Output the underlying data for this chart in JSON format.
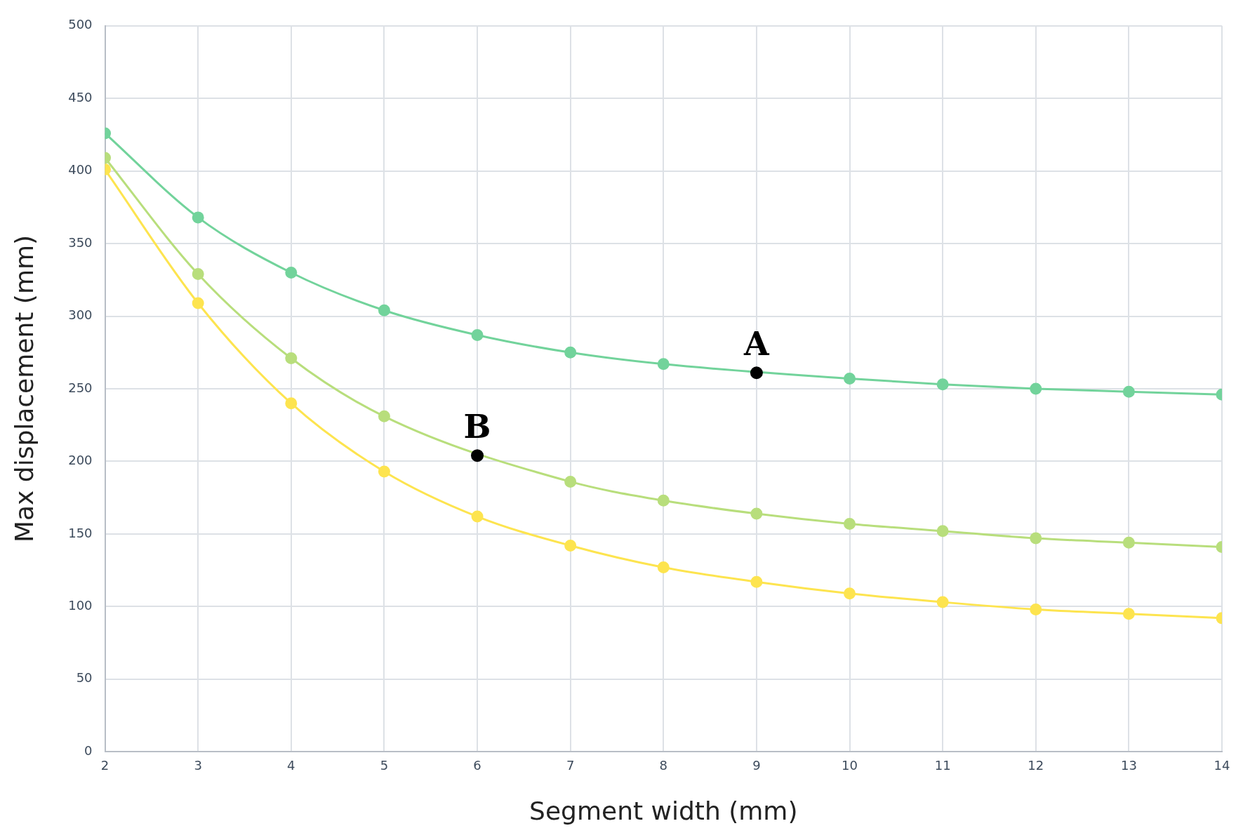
{
  "chart_data": {
    "type": "line",
    "xlabel": "Segment width (mm)",
    "ylabel": "Max displacement (mm)",
    "x": [
      2,
      3,
      4,
      5,
      6,
      7,
      8,
      9,
      10,
      11,
      12,
      13,
      14
    ],
    "series": [
      {
        "color": "#72d39b",
        "values": [
          426,
          368,
          330,
          304,
          287,
          275,
          267,
          null,
          257,
          253,
          250,
          248,
          246
        ]
      },
      {
        "color": "#b8de7c",
        "values": [
          409,
          329,
          271,
          231,
          null,
          186,
          173,
          164,
          157,
          152,
          147,
          144,
          141
        ]
      },
      {
        "color": "#fde44f",
        "values": [
          401,
          309,
          240,
          193,
          162,
          142,
          127,
          117,
          109,
          103,
          98,
          95,
          92
        ]
      }
    ],
    "xlim": [
      2,
      14
    ],
    "xticks": [
      2,
      3,
      4,
      5,
      6,
      7,
      8,
      9,
      10,
      11,
      12,
      13,
      14
    ],
    "ylim": [
      0,
      500
    ],
    "yticks": [
      0,
      50,
      100,
      150,
      200,
      250,
      300,
      350,
      400,
      450,
      500
    ],
    "grid": true,
    "legend": false,
    "marker": "circle",
    "line_style": "solid",
    "annotations": [
      {
        "text": "A",
        "x": 9,
        "y": 261
      },
      {
        "text": "B",
        "x": 6,
        "y": 204
      }
    ]
  }
}
